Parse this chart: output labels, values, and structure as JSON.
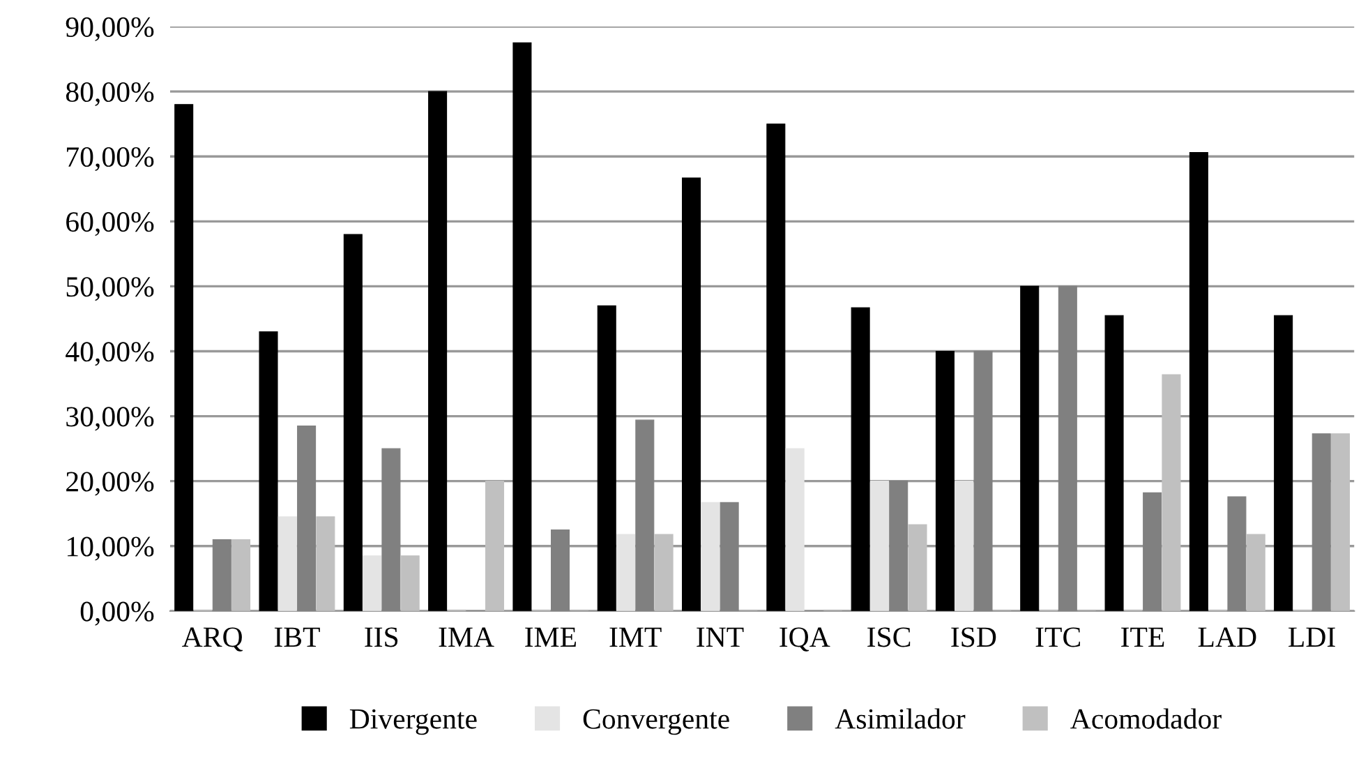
{
  "chart_data": {
    "type": "bar",
    "categories": [
      "ARQ",
      "IBT",
      "IIS",
      "IMA",
      "IME",
      "IMT",
      "INT",
      "IQA",
      "ISC",
      "ISD",
      "ITC",
      "ITE",
      "LAD",
      "LDI"
    ],
    "series": [
      {
        "name": "Divergente",
        "color": "#000000",
        "values": [
          78,
          43,
          58,
          80,
          87.5,
          47,
          66.7,
          75,
          46.7,
          40,
          50,
          45.5,
          70.6,
          45.5
        ]
      },
      {
        "name": "Convergente",
        "color": "#e4e4e4",
        "values": [
          0,
          14.5,
          8.5,
          0,
          0,
          11.8,
          16.7,
          25,
          20,
          20,
          0,
          0,
          0,
          0
        ]
      },
      {
        "name": "Asimilador",
        "color": "#808080",
        "values": [
          11,
          28.5,
          25,
          0,
          12.5,
          29.4,
          16.7,
          0,
          20,
          40,
          50,
          18.2,
          17.6,
          27.3
        ]
      },
      {
        "name": "Acomodador",
        "color": "#c0c0c0",
        "values": [
          11,
          14.5,
          8.5,
          20,
          0,
          11.8,
          0,
          0,
          13.3,
          0,
          0,
          36.4,
          11.8,
          27.3
        ]
      }
    ],
    "ylim": [
      0,
      90
    ],
    "yticks": [
      {
        "value": 0,
        "label": "0,00%"
      },
      {
        "value": 10,
        "label": "10,00%"
      },
      {
        "value": 20,
        "label": "20,00%"
      },
      {
        "value": 30,
        "label": "30,00%"
      },
      {
        "value": 40,
        "label": "40,00%"
      },
      {
        "value": 50,
        "label": "50,00%"
      },
      {
        "value": 60,
        "label": "60,00%"
      },
      {
        "value": 70,
        "label": "70,00%"
      },
      {
        "value": 80,
        "label": "80,00%"
      },
      {
        "value": 90,
        "label": "90,00%"
      }
    ],
    "grid": "y",
    "legend": "bottom"
  }
}
